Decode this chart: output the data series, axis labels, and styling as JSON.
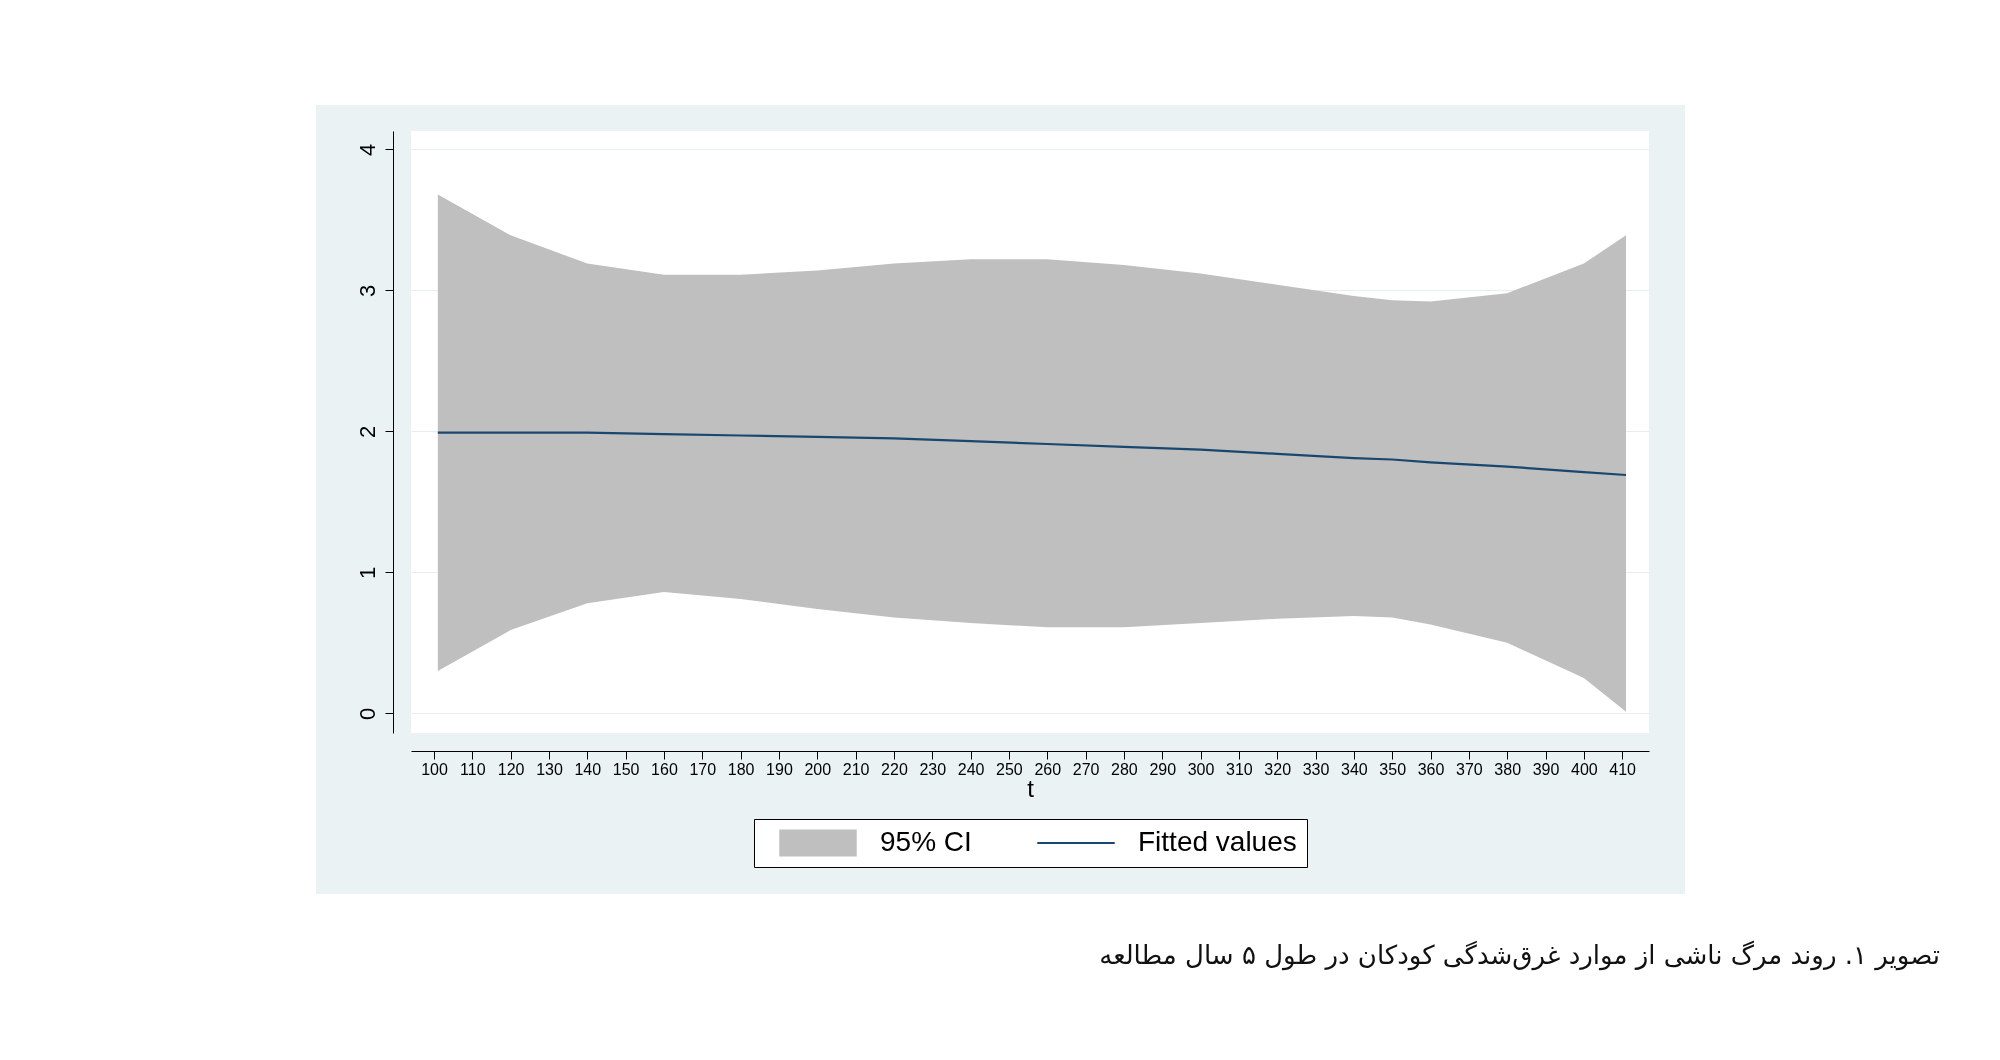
{
  "chart_data": {
    "type": "line",
    "xlabel": "t",
    "xlim": [
      94,
      417
    ],
    "ylim": [
      -0.14,
      4.13
    ],
    "xticks": [
      100,
      110,
      120,
      130,
      140,
      150,
      160,
      170,
      180,
      190,
      200,
      210,
      220,
      230,
      240,
      250,
      260,
      270,
      280,
      290,
      300,
      310,
      320,
      330,
      340,
      350,
      360,
      370,
      380,
      390,
      400,
      410
    ],
    "yticks": [
      0,
      1,
      2,
      3,
      4
    ],
    "grid": "y",
    "legend": "bottom",
    "marker": "none",
    "line_style": "solid",
    "series": [
      {
        "name": "Fitted values",
        "color": "#1a476f",
        "x": [
          101,
          120,
          140,
          160,
          180,
          200,
          220,
          240,
          260,
          280,
          300,
          320,
          340,
          350,
          360,
          380,
          400,
          411
        ],
        "values": [
          1.99,
          1.99,
          1.99,
          1.98,
          1.97,
          1.96,
          1.95,
          1.93,
          1.91,
          1.89,
          1.87,
          1.84,
          1.81,
          1.8,
          1.78,
          1.75,
          1.71,
          1.69
        ],
        "lower": [
          0.3,
          0.59,
          0.78,
          0.86,
          0.81,
          0.74,
          0.68,
          0.64,
          0.61,
          0.61,
          0.64,
          0.67,
          0.69,
          0.68,
          0.63,
          0.5,
          0.25,
          0.01
        ],
        "upper": [
          3.68,
          3.39,
          3.19,
          3.11,
          3.11,
          3.14,
          3.19,
          3.22,
          3.22,
          3.18,
          3.12,
          3.04,
          2.96,
          2.93,
          2.92,
          2.98,
          3.19,
          3.39
        ]
      }
    ],
    "annotations": [
      "95% CI",
      "تصویر ۱. روند مرگ ناشی از موارد غرق‌شدگی کودکان در طول ۵ سال مطالعه"
    ]
  }
}
